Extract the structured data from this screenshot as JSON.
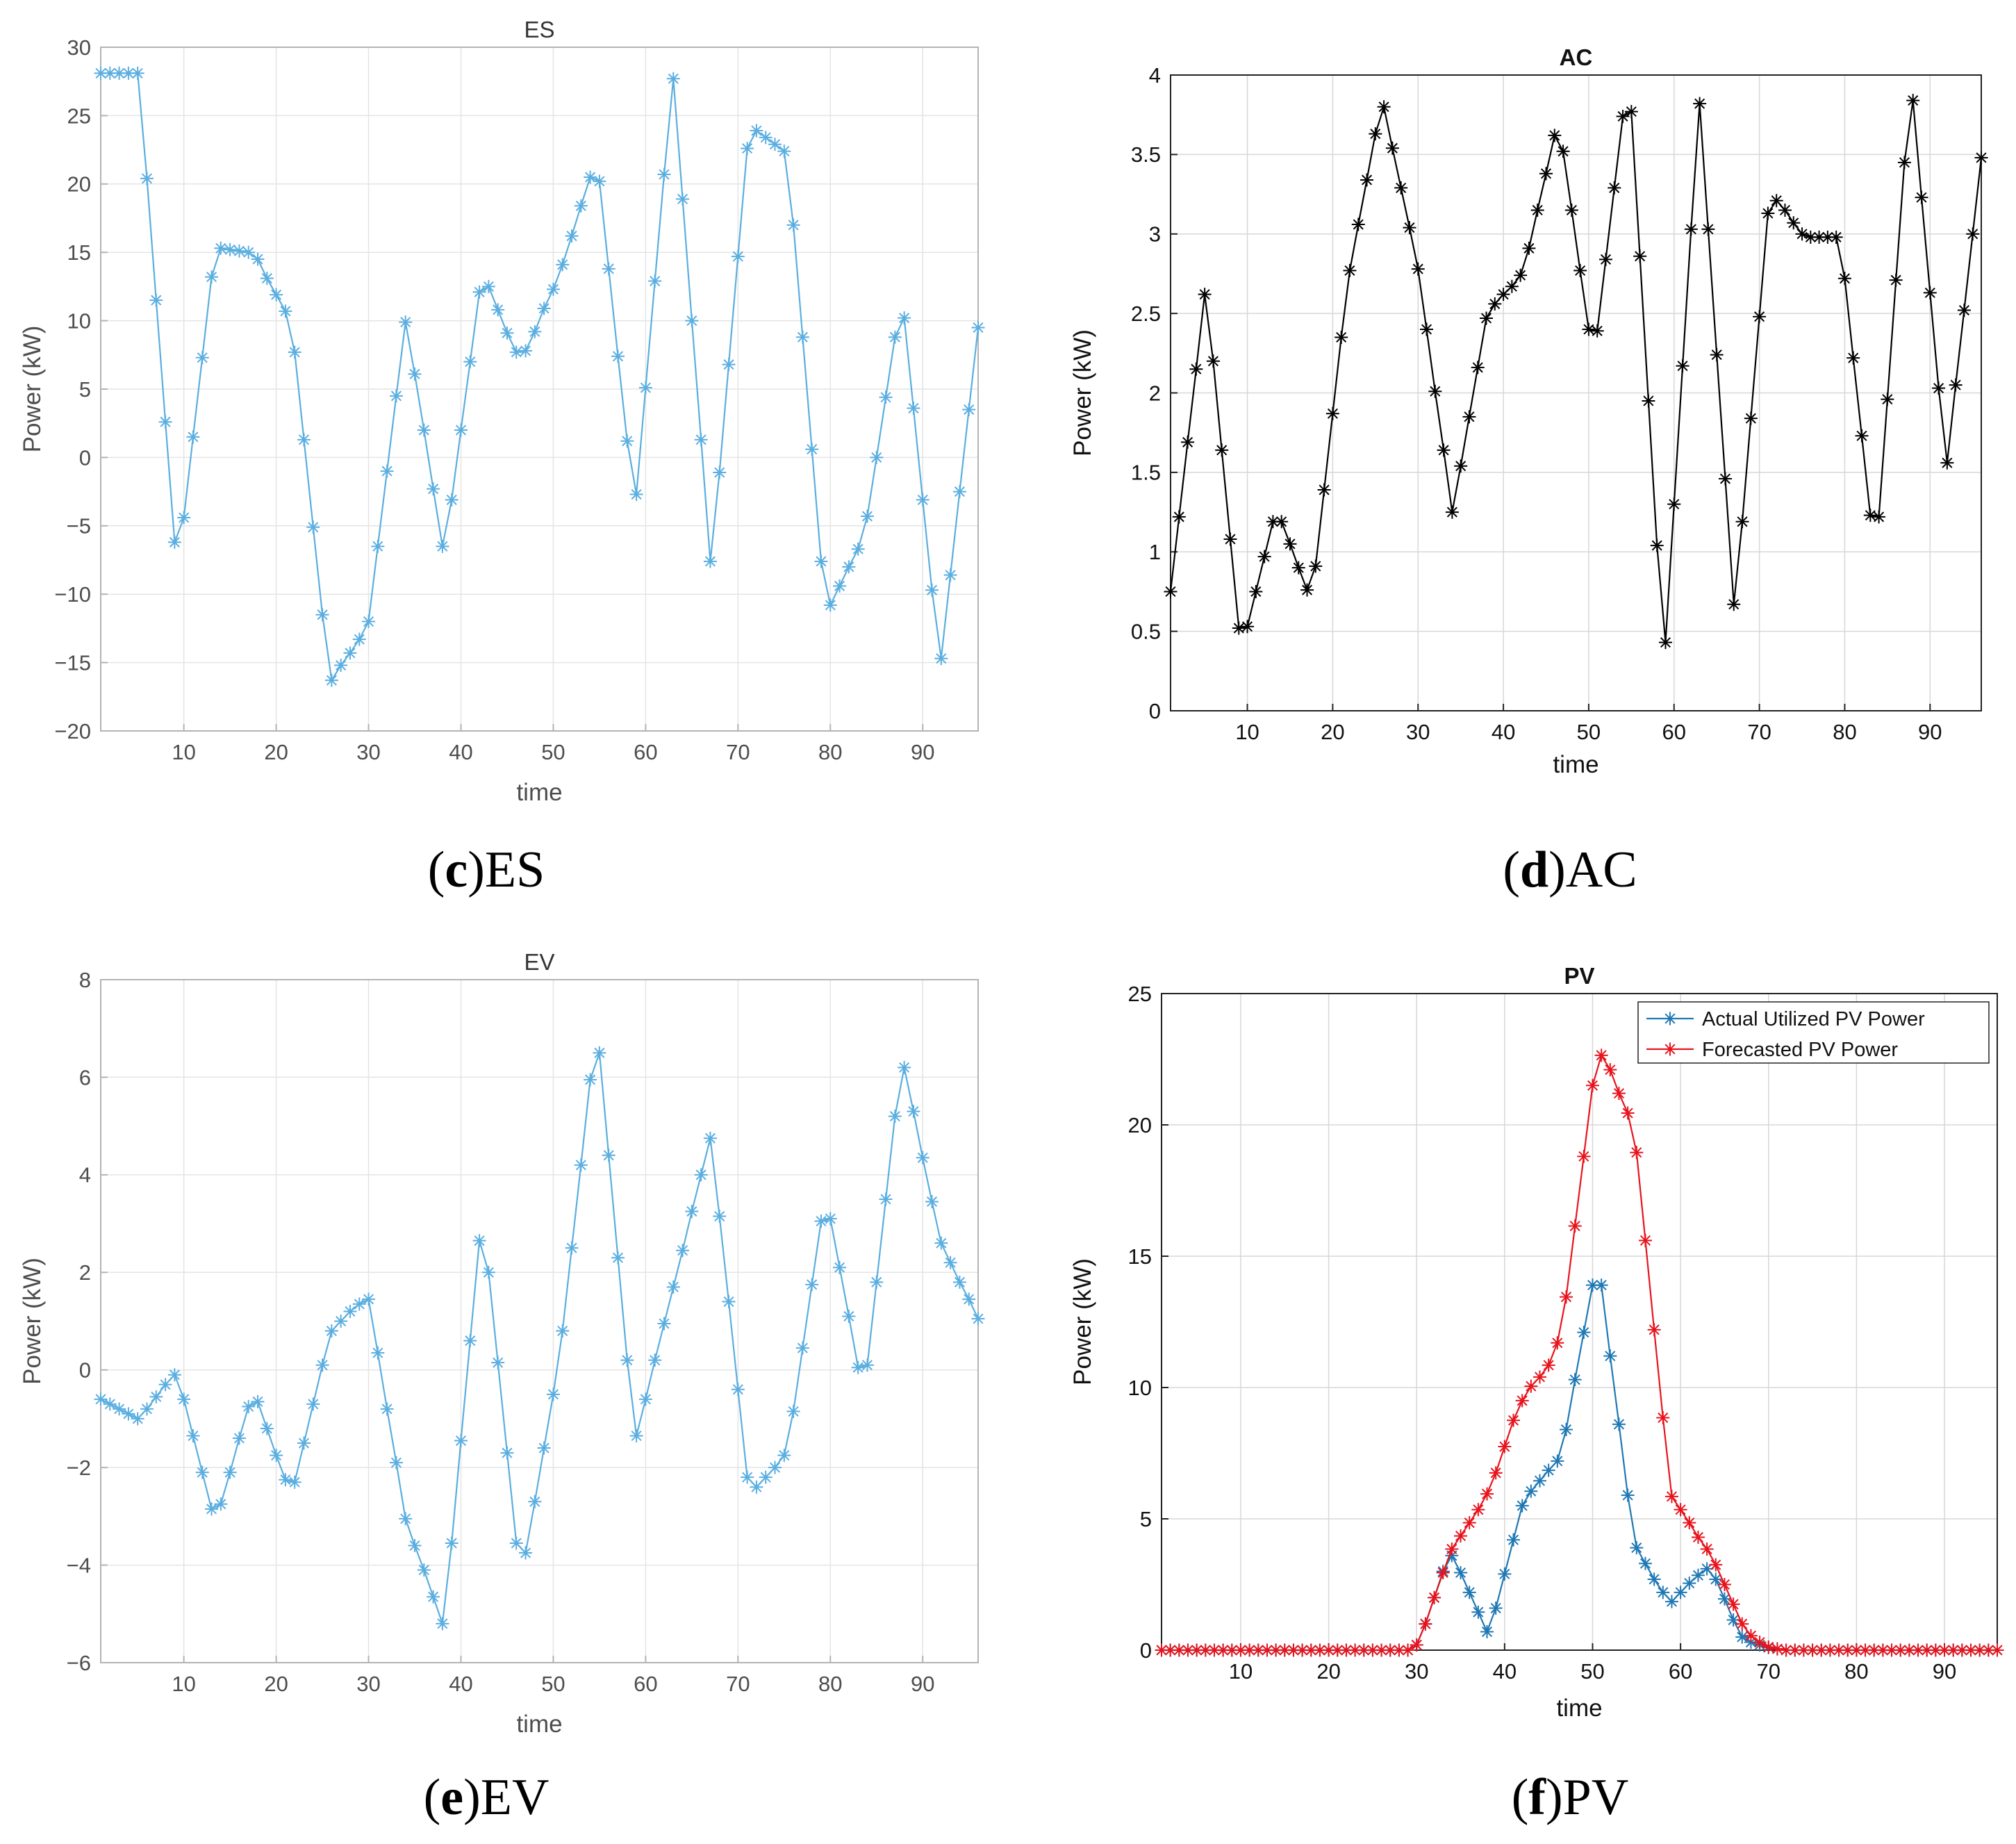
{
  "figure": {
    "panels": [
      {
        "caption_letter": "c",
        "caption_text": "ES"
      },
      {
        "caption_letter": "d",
        "caption_text": "AC"
      },
      {
        "caption_letter": "e",
        "caption_text": "EV"
      },
      {
        "caption_letter": "f",
        "caption_text": "PV"
      }
    ]
  },
  "chart_data": [
    {
      "type": "line",
      "title": "ES",
      "xlabel": "time",
      "ylabel": "Power (kW)",
      "xlim": [
        1,
        96
      ],
      "ylim": [
        -20,
        30
      ],
      "xticks": [
        10,
        20,
        30,
        40,
        50,
        60,
        70,
        80,
        90
      ],
      "yticks": [
        -20,
        -15,
        -10,
        -5,
        0,
        5,
        10,
        15,
        20,
        25,
        30
      ],
      "grid": true,
      "marker": "*",
      "series": [
        {
          "name": "ES",
          "color": "#5aaee0",
          "x_start": 1,
          "values": [
            28.1,
            28.1,
            28.1,
            28.1,
            28.1,
            20.4,
            11.5,
            2.6,
            -6.2,
            -4.4,
            1.5,
            7.3,
            13.2,
            15.3,
            15.2,
            15.1,
            15.0,
            14.5,
            13.1,
            11.9,
            10.7,
            7.7,
            1.3,
            -5.1,
            -11.5,
            -16.3,
            -15.2,
            -14.3,
            -13.3,
            -12.0,
            -6.5,
            -1.0,
            4.5,
            9.9,
            6.1,
            2.0,
            -2.3,
            -6.5,
            -3.1,
            2.0,
            7.0,
            12.1,
            12.5,
            10.8,
            9.1,
            7.7,
            7.8,
            9.2,
            10.9,
            12.3,
            14.1,
            16.2,
            18.4,
            20.5,
            20.2,
            13.8,
            7.4,
            1.2,
            -2.7,
            5.1,
            12.9,
            20.7,
            27.7,
            18.9,
            10.0,
            1.3,
            -7.6,
            -1.1,
            6.8,
            14.7,
            22.6,
            23.9,
            23.4,
            22.9,
            22.4,
            17.0,
            8.8,
            0.6,
            -7.6,
            -10.8,
            -9.4,
            -8.0,
            -6.7,
            -4.3,
            0.0,
            4.4,
            8.8,
            10.2,
            3.6,
            -3.1,
            -9.7,
            -14.7,
            -8.6,
            -2.5,
            3.5,
            9.5
          ]
        }
      ]
    },
    {
      "type": "line",
      "title": "AC",
      "xlabel": "time",
      "ylabel": "Power (kW)",
      "xlim": [
        1,
        96
      ],
      "ylim": [
        0,
        4
      ],
      "xticks": [
        10,
        20,
        30,
        40,
        50,
        60,
        70,
        80,
        90
      ],
      "yticks": [
        0,
        0.5,
        1,
        1.5,
        2,
        2.5,
        3,
        3.5,
        4
      ],
      "grid": true,
      "marker": "*",
      "series": [
        {
          "name": "AC",
          "color": "#000000",
          "x_start": 1,
          "values": [
            0.75,
            1.22,
            1.69,
            2.15,
            2.62,
            2.2,
            1.64,
            1.08,
            0.52,
            0.53,
            0.75,
            0.97,
            1.19,
            1.19,
            1.05,
            0.9,
            0.76,
            0.91,
            1.39,
            1.87,
            2.35,
            2.77,
            3.06,
            3.34,
            3.63,
            3.8,
            3.54,
            3.29,
            3.04,
            2.78,
            2.4,
            2.01,
            1.64,
            1.25,
            1.54,
            1.85,
            2.16,
            2.47,
            2.56,
            2.62,
            2.67,
            2.74,
            2.91,
            3.15,
            3.38,
            3.62,
            3.52,
            3.15,
            2.77,
            2.4,
            2.39,
            2.84,
            3.29,
            3.74,
            3.77,
            2.86,
            1.95,
            1.04,
            0.43,
            1.3,
            2.17,
            3.03,
            3.82,
            3.03,
            2.24,
            1.46,
            0.67,
            1.19,
            1.84,
            2.48,
            3.13,
            3.21,
            3.15,
            3.07,
            3.0,
            2.98,
            2.98,
            2.98,
            2.98,
            2.72,
            2.22,
            1.73,
            1.23,
            1.22,
            1.96,
            2.71,
            3.45,
            3.84,
            3.23,
            2.63,
            2.03,
            1.56,
            2.05,
            2.52,
            3.0,
            3.48
          ]
        }
      ]
    },
    {
      "type": "line",
      "title": "EV",
      "xlabel": "time",
      "ylabel": "Power (kW)",
      "xlim": [
        1,
        96
      ],
      "ylim": [
        -6,
        8
      ],
      "xticks": [
        10,
        20,
        30,
        40,
        50,
        60,
        70,
        80,
        90
      ],
      "yticks": [
        -6,
        -4,
        -2,
        0,
        2,
        4,
        6,
        8
      ],
      "grid": true,
      "marker": "*",
      "series": [
        {
          "name": "EV",
          "color": "#5aaee0",
          "x_start": 1,
          "values": [
            -0.6,
            -0.7,
            -0.8,
            -0.9,
            -1.0,
            -0.8,
            -0.55,
            -0.3,
            -0.1,
            -0.6,
            -1.35,
            -2.1,
            -2.85,
            -2.75,
            -2.1,
            -1.4,
            -0.75,
            -0.65,
            -1.2,
            -1.75,
            -2.25,
            -2.3,
            -1.5,
            -0.7,
            0.1,
            0.8,
            1.0,
            1.2,
            1.35,
            1.45,
            0.35,
            -0.8,
            -1.9,
            -3.05,
            -3.6,
            -4.1,
            -4.65,
            -5.2,
            -3.55,
            -1.45,
            0.6,
            2.65,
            2.0,
            0.15,
            -1.7,
            -3.55,
            -3.75,
            -2.7,
            -1.6,
            -0.5,
            0.8,
            2.5,
            4.2,
            5.95,
            6.5,
            4.4,
            2.3,
            0.2,
            -1.35,
            -0.6,
            0.2,
            0.95,
            1.7,
            2.45,
            3.25,
            4.0,
            4.75,
            3.15,
            1.4,
            -0.4,
            -2.2,
            -2.4,
            -2.2,
            -2.0,
            -1.75,
            -0.85,
            0.45,
            1.75,
            3.05,
            3.1,
            2.1,
            1.1,
            0.05,
            0.1,
            1.8,
            3.5,
            5.2,
            6.2,
            5.3,
            4.35,
            3.45,
            2.6,
            2.2,
            1.8,
            1.45,
            1.05
          ]
        }
      ]
    },
    {
      "type": "line",
      "title": "PV",
      "xlabel": "time",
      "ylabel": "Power (kW)",
      "xlim": [
        1,
        96
      ],
      "ylim": [
        0,
        25
      ],
      "xticks": [
        10,
        20,
        30,
        40,
        50,
        60,
        70,
        80,
        90
      ],
      "yticks": [
        0,
        5,
        10,
        15,
        20,
        25
      ],
      "grid": true,
      "marker": "*",
      "legend_location": "top-right",
      "series": [
        {
          "name": "Actual Utilized PV Power",
          "color": "#1f78b4",
          "x_start": 1,
          "values": [
            0,
            0,
            0,
            0,
            0,
            0,
            0,
            0,
            0,
            0,
            0,
            0,
            0,
            0,
            0,
            0,
            0,
            0,
            0,
            0,
            0,
            0,
            0,
            0,
            0,
            0,
            0,
            0,
            0,
            0.2,
            1.0,
            2.0,
            3.0,
            3.6,
            2.95,
            2.2,
            1.45,
            0.7,
            1.6,
            2.9,
            4.2,
            5.5,
            6.05,
            6.45,
            6.85,
            7.2,
            8.4,
            10.3,
            12.1,
            13.9,
            13.9,
            11.2,
            8.6,
            5.9,
            3.9,
            3.3,
            2.7,
            2.2,
            1.85,
            2.2,
            2.55,
            2.85,
            3.1,
            2.7,
            1.95,
            1.15,
            0.5,
            0.3,
            0.2,
            0.1,
            0.05,
            0,
            0,
            0,
            0,
            0,
            0,
            0,
            0,
            0,
            0,
            0,
            0,
            0,
            0,
            0,
            0,
            0,
            0,
            0,
            0,
            0,
            0,
            0,
            0,
            0
          ]
        },
        {
          "name": "Forecasted PV Power",
          "color": "#e8131c",
          "x_start": 1,
          "values": [
            0,
            0,
            0,
            0,
            0,
            0,
            0,
            0,
            0,
            0,
            0,
            0,
            0,
            0,
            0,
            0,
            0,
            0,
            0,
            0,
            0,
            0,
            0,
            0,
            0,
            0,
            0,
            0,
            0,
            0.2,
            1.0,
            2.0,
            2.95,
            3.85,
            4.35,
            4.85,
            5.35,
            5.95,
            6.75,
            7.75,
            8.75,
            9.5,
            10.05,
            10.4,
            10.85,
            11.7,
            13.45,
            16.15,
            18.8,
            21.5,
            22.65,
            22.1,
            21.2,
            20.45,
            18.95,
            15.6,
            12.2,
            8.85,
            5.85,
            5.35,
            4.85,
            4.3,
            3.85,
            3.25,
            2.5,
            1.75,
            1.0,
            0.55,
            0.3,
            0.12,
            0.05,
            0,
            0,
            0,
            0,
            0,
            0,
            0,
            0,
            0,
            0,
            0,
            0,
            0,
            0,
            0,
            0,
            0,
            0,
            0,
            0,
            0,
            0,
            0,
            0,
            0
          ]
        }
      ]
    }
  ]
}
